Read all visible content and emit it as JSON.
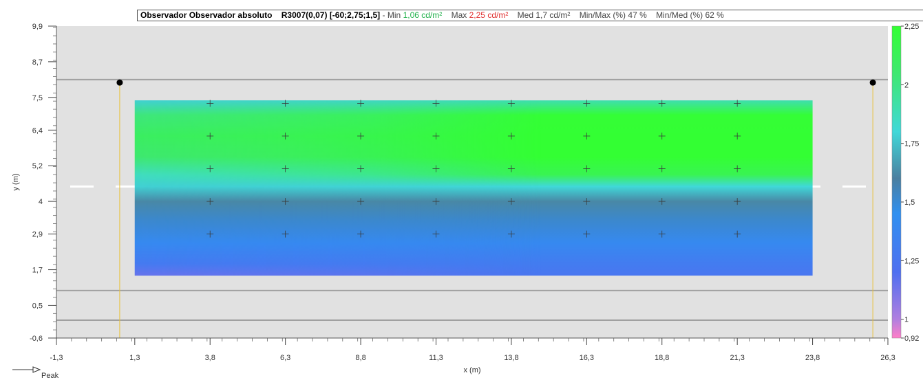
{
  "header": {
    "observer_label": "Observador",
    "observer_value": "Observador absoluto",
    "code": "R3007(0,07)",
    "position": "[-60;2,75;1,5]",
    "sep": "-",
    "min_label": "Min",
    "min_value": "1,06 cd/m²",
    "max_label": "Max",
    "max_value": "2,25 cd/m²",
    "med_label": "Med",
    "med_value": "1,7 cd/m²",
    "minmax_label": "Min/Max (%)",
    "minmax_value": "47 %",
    "minmed_label": "Min/Med (%)",
    "minmed_value": "62 %"
  },
  "legend": {
    "peak_label": "Peak"
  },
  "colors": {
    "road_bg": "#e1e1e1",
    "lane_line": "#ffffff",
    "road_line": "#a0a0a0",
    "pole": "#e8c13a",
    "luminaire": "#000000",
    "grid_point": "#3a3a3a"
  },
  "chart_data": {
    "type": "heatmap",
    "xlabel": "x (m)",
    "ylabel": "y (m)",
    "xlim": [
      -1.3,
      26.3
    ],
    "ylim": [
      -0.6,
      9.9
    ],
    "x_ticks": [
      -1.3,
      1.3,
      3.8,
      6.3,
      8.8,
      11.3,
      13.8,
      16.3,
      18.8,
      21.3,
      23.8,
      26.3
    ],
    "x_tick_labels": [
      "-1,3",
      "1,3",
      "3,8",
      "6,3",
      "8,8",
      "11,3",
      "13,8",
      "16,3",
      "18,8",
      "21,3",
      "23,8",
      "26,3"
    ],
    "y_ticks": [
      -0.6,
      0.5,
      1.7,
      2.9,
      4,
      5.2,
      6.4,
      7.5,
      8.7,
      9.9
    ],
    "y_tick_labels": [
      "-0,6",
      "0,5",
      "1,7",
      "2,9",
      "4",
      "5,2",
      "6,4",
      "7,5",
      "8,7",
      "9,9"
    ],
    "calc_area": {
      "x": [
        1.3,
        23.8
      ],
      "y": [
        1.5,
        7.4
      ]
    },
    "road_lines_y": [
      8.1,
      1.0,
      0.0
    ],
    "lane_divider_y": 4.5,
    "luminaires": [
      {
        "x": 0.8,
        "y": 8.0
      },
      {
        "x": 25.8,
        "y": 8.0
      }
    ],
    "grid_points_x": [
      3.8,
      6.3,
      8.8,
      11.3,
      13.8,
      16.3,
      18.8,
      21.3
    ],
    "grid_points_y": [
      2.9,
      4.0,
      5.1,
      6.2,
      7.3
    ],
    "colorbar": {
      "min": 0.92,
      "max": 2.25,
      "ticks": [
        0.92,
        1,
        1.25,
        1.5,
        1.75,
        2,
        2.25
      ],
      "tick_labels": [
        "0,92",
        "1",
        "1,25",
        "1,5",
        "1,75",
        "2",
        "2,25"
      ],
      "stops": [
        {
          "v": 0.92,
          "color": "#ff7fc8"
        },
        {
          "v": 1.0,
          "color": "#b07fe0"
        },
        {
          "v": 1.2,
          "color": "#4f6ff0"
        },
        {
          "v": 1.45,
          "color": "#3090f0"
        },
        {
          "v": 1.6,
          "color": "#4a7fa0"
        },
        {
          "v": 1.8,
          "color": "#40d8d8"
        },
        {
          "v": 2.05,
          "color": "#3ee870"
        },
        {
          "v": 2.25,
          "color": "#33ff33"
        }
      ]
    },
    "luminance_profile": [
      {
        "y": 7.4,
        "left": 1.78,
        "right": 1.9
      },
      {
        "y": 6.9,
        "left": 2.02,
        "right": 2.24
      },
      {
        "y": 6.2,
        "left": 2.1,
        "right": 2.25
      },
      {
        "y": 5.5,
        "left": 2.05,
        "right": 2.25
      },
      {
        "y": 4.9,
        "left": 1.86,
        "right": 2.15
      },
      {
        "y": 4.5,
        "left": 1.78,
        "right": 1.8
      },
      {
        "y": 4.0,
        "left": 1.62,
        "right": 1.62
      },
      {
        "y": 3.4,
        "left": 1.52,
        "right": 1.52
      },
      {
        "y": 2.6,
        "left": 1.4,
        "right": 1.4
      },
      {
        "y": 1.9,
        "left": 1.28,
        "right": 1.3
      },
      {
        "y": 1.5,
        "left": 1.15,
        "right": 1.25
      }
    ]
  }
}
